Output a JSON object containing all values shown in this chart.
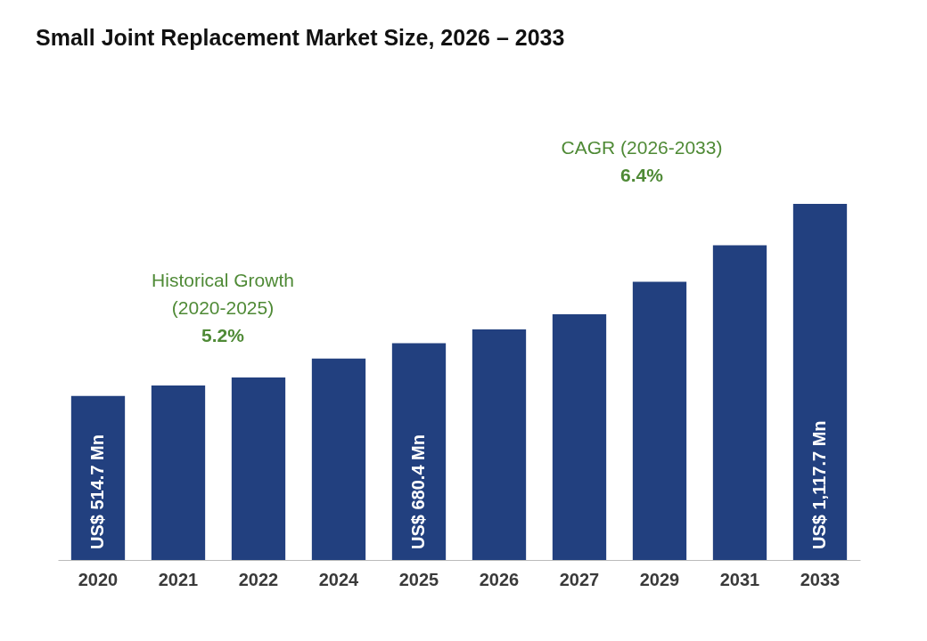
{
  "chart_data": {
    "type": "bar",
    "title": "Small Joint Replacement Market Size, 2026 – 2033",
    "categories": [
      "2020",
      "2021",
      "2022",
      "2024",
      "2025",
      "2026",
      "2027",
      "2029",
      "2031",
      "2033"
    ],
    "values": [
      514.7,
      548,
      573,
      632,
      680.4,
      724,
      771,
      873,
      988,
      1117.7
    ],
    "value_labels": [
      "US$ 514.7 Mn",
      null,
      null,
      null,
      "US$ 680.4 Mn",
      null,
      null,
      null,
      null,
      "US$ 1,117.7 Mn"
    ],
    "color": "#22407f",
    "annotations": [
      "Historical Growth\n(2020-2025)\n5.2%",
      "CAGR (2026-2033)\n6.4%"
    ]
  }
}
